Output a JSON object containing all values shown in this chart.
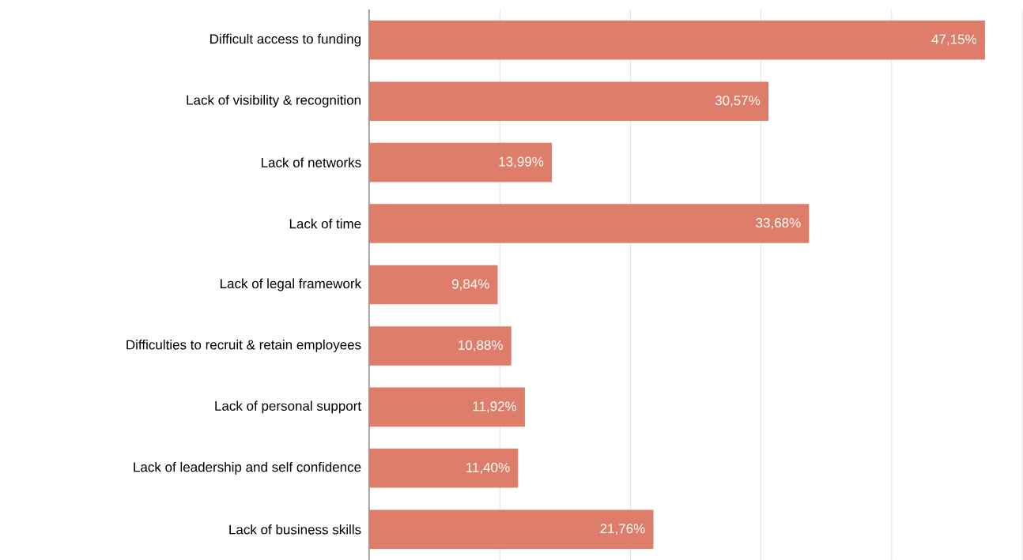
{
  "chart_data": {
    "type": "bar",
    "orientation": "horizontal",
    "categories": [
      "Difficult access to funding",
      "Lack of visibility & recognition",
      "Lack of networks",
      "Lack of time",
      "Lack of legal framework",
      "Difficulties to recruit & retain employees",
      "Lack of personal support",
      "Lack of leadership and self confidence",
      "Lack of business skills"
    ],
    "values": [
      47.15,
      30.57,
      13.99,
      33.68,
      9.84,
      10.88,
      11.92,
      11.4,
      21.76
    ],
    "value_labels": [
      "47,15%",
      "30,57%",
      "13,99%",
      "33,68%",
      "9,84%",
      "10,88%",
      "11,92%",
      "11,40%",
      "21,76%"
    ],
    "color": "#de7e6a",
    "xlim": [
      0,
      50
    ],
    "xticks": [
      {
        "value": 0,
        "label": null
      },
      {
        "value": 10,
        "label": null
      },
      {
        "value": 20,
        "label": null
      },
      {
        "value": 30,
        "label": null
      },
      {
        "value": 40,
        "label": null
      },
      {
        "value": 50,
        "label": null
      }
    ],
    "grid": "x",
    "tick_labels": "y"
  }
}
